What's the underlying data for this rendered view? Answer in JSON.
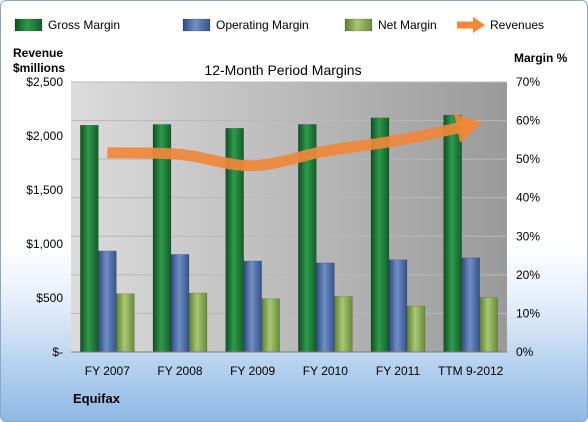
{
  "company": "Equifax",
  "chart_data": {
    "type": "bar",
    "title": "12-Month Period Margins",
    "left_axis_title": [
      "Revenue",
      "$millions"
    ],
    "right_axis_title": "Margin %",
    "categories": [
      "FY 2007",
      "FY 2008",
      "FY 2009",
      "FY 2010",
      "FY 2011",
      "TTM 9-2012"
    ],
    "left_ticks": [
      "$-",
      "$500",
      "$1,000",
      "$1,500",
      "$2,000",
      "$2,500"
    ],
    "right_ticks": [
      "0%",
      "10%",
      "20%",
      "30%",
      "40%",
      "50%",
      "60%",
      "70%"
    ],
    "left_range": [
      0,
      2500
    ],
    "right_range": [
      0,
      70
    ],
    "legend_position": "top",
    "series": [
      {
        "name": "Gross Margin",
        "kind": "bar",
        "axis": "right",
        "color": "#1e7a3a",
        "values": [
          58.8,
          59.0,
          58.0,
          59.0,
          60.7,
          61.4
        ]
      },
      {
        "name": "Operating Margin",
        "kind": "bar",
        "axis": "right",
        "color": "#4f6fa8",
        "values": [
          26.2,
          25.3,
          23.6,
          23.1,
          23.9,
          24.4
        ]
      },
      {
        "name": "Net Margin",
        "kind": "bar",
        "axis": "right",
        "color": "#8cb05a",
        "values": [
          15.1,
          15.3,
          13.8,
          14.4,
          11.9,
          14.1
        ]
      },
      {
        "name": "Revenues",
        "kind": "line",
        "axis": "left",
        "color": "#f0883a",
        "values": [
          1844,
          1830,
          1725,
          1860,
          1960,
          2100
        ]
      }
    ]
  }
}
